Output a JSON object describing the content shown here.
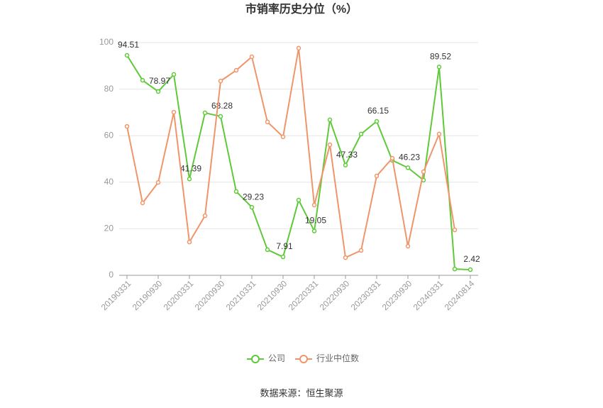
{
  "chart_data": {
    "type": "line",
    "title": "市销率历史分位（%）",
    "categories": [
      "20190331",
      null,
      "20190930",
      null,
      "20200331",
      null,
      "20200930",
      null,
      "20210331",
      null,
      "20210930",
      null,
      "20220331",
      null,
      "20220930",
      null,
      "20230331",
      null,
      "20230930",
      null,
      "20240331",
      null,
      "20240814"
    ],
    "series": [
      {
        "name": "公司",
        "color": "#5fc93a",
        "values": [
          94.51,
          83.8,
          78.97,
          86.3,
          41.39,
          69.8,
          68.28,
          36.0,
          29.23,
          11.0,
          7.91,
          32.3,
          19.05,
          66.8,
          47.33,
          60.7,
          66.15,
          49.4,
          46.23,
          40.9,
          89.52,
          2.7,
          2.42
        ],
        "value_labels": [
          "94.51",
          null,
          "78.97",
          null,
          "41.39",
          null,
          "68.28",
          null,
          "29.23",
          null,
          "7.91",
          null,
          "19.05",
          null,
          "47.33",
          null,
          "66.15",
          null,
          "46.23",
          null,
          "89.52",
          null,
          "2.42"
        ]
      },
      {
        "name": "行业中位数",
        "color": "#f0956a",
        "values": [
          64.0,
          31.1,
          39.9,
          70.1,
          14.3,
          25.6,
          83.5,
          88.1,
          93.9,
          65.9,
          59.5,
          97.6,
          30.2,
          56.1,
          7.6,
          10.7,
          42.7,
          50.3,
          12.5,
          44.5,
          60.7,
          19.5,
          null
        ]
      }
    ],
    "ylim": [
      0,
      100
    ],
    "yticks": [
      0,
      20,
      40,
      60,
      80,
      100
    ],
    "grid": true,
    "legend": "bottom",
    "source": "数据来源：恒生聚源"
  }
}
